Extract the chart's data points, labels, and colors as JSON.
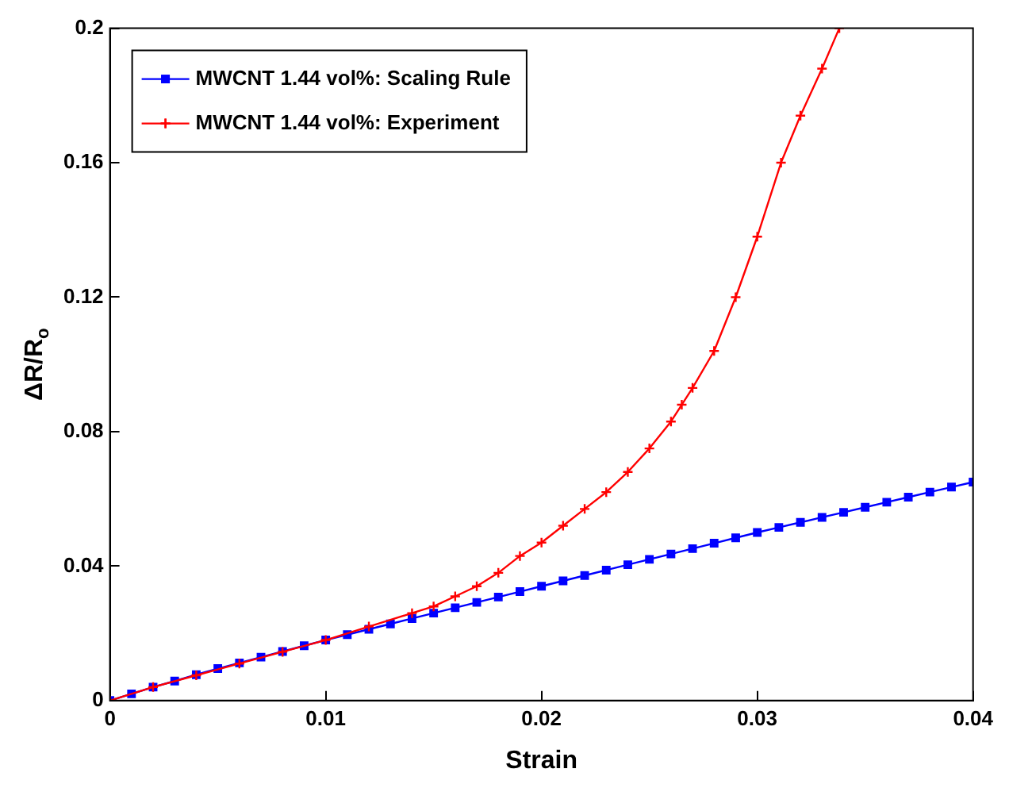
{
  "chart_data": {
    "type": "line",
    "xlabel": "Strain",
    "ylabel": "ΔR/R$_{o}$",
    "xlim": [
      0,
      0.04
    ],
    "xticks": [
      0,
      0.01,
      0.02,
      0.03,
      0.04
    ],
    "ylim": [
      0,
      0.2
    ],
    "yticks": [
      0,
      0.04,
      0.08,
      0.12,
      0.16,
      0.2
    ],
    "grid": false,
    "legend": "top left",
    "series": [
      {
        "name": "MWCNT 1.44 vol%: Scaling Rule",
        "color": "#0000ff",
        "marker": "square",
        "x": [
          0,
          0.001,
          0.002,
          0.003,
          0.004,
          0.005,
          0.006,
          0.007,
          0.008,
          0.009,
          0.01,
          0.011,
          0.012,
          0.013,
          0.014,
          0.015,
          0.016,
          0.017,
          0.018,
          0.019,
          0.02,
          0.021,
          0.022,
          0.023,
          0.024,
          0.025,
          0.026,
          0.027,
          0.028,
          0.029,
          0.03,
          0.031,
          0.032,
          0.033,
          0.034,
          0.035,
          0.036,
          0.037,
          0.038,
          0.039,
          0.04
        ],
        "values": [
          0,
          0.002,
          0.004,
          0.0058,
          0.0077,
          0.0095,
          0.0112,
          0.0129,
          0.0146,
          0.0163,
          0.018,
          0.0196,
          0.0212,
          0.0228,
          0.0244,
          0.026,
          0.0276,
          0.0292,
          0.0308,
          0.0324,
          0.034,
          0.0356,
          0.0372,
          0.0388,
          0.0404,
          0.042,
          0.0436,
          0.0452,
          0.0468,
          0.0484,
          0.05,
          0.0515,
          0.053,
          0.0545,
          0.056,
          0.0575,
          0.059,
          0.0605,
          0.062,
          0.0635,
          0.065
        ]
      },
      {
        "name": "MWCNT 1.44 vol%: Experiment",
        "color": "#ff0000",
        "marker": "cross",
        "x": [
          0,
          0.002,
          0.004,
          0.006,
          0.008,
          0.01,
          0.012,
          0.014,
          0.015,
          0.016,
          0.017,
          0.018,
          0.019,
          0.02,
          0.021,
          0.022,
          0.023,
          0.024,
          0.025,
          0.026,
          0.0265,
          0.027,
          0.028,
          0.029,
          0.03,
          0.0311,
          0.032,
          0.033,
          0.0338
        ],
        "values": [
          0,
          0.004,
          0.0075,
          0.011,
          0.0145,
          0.018,
          0.022,
          0.026,
          0.028,
          0.031,
          0.034,
          0.038,
          0.043,
          0.047,
          0.052,
          0.057,
          0.062,
          0.068,
          0.075,
          0.083,
          0.088,
          0.093,
          0.104,
          0.12,
          0.138,
          0.16,
          0.174,
          0.188,
          0.2
        ]
      }
    ]
  }
}
